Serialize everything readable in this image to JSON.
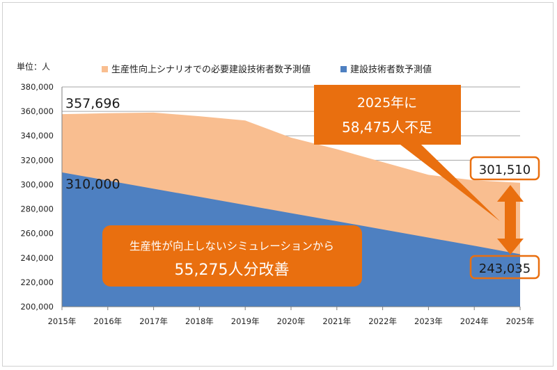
{
  "chart_data": {
    "type": "area",
    "unit_label": "単位：人",
    "categories": [
      "2015年",
      "2016年",
      "2017年",
      "2018年",
      "2019年",
      "2020年",
      "2021年",
      "2022年",
      "2023年",
      "2024年",
      "2025年"
    ],
    "series": [
      {
        "name": "生産性向上シナリオでの必要建設技術者数予測値",
        "color": "#f9be90",
        "values": [
          357696,
          358500,
          359000,
          356000,
          352500,
          338500,
          329000,
          318500,
          308000,
          303500,
          301510
        ]
      },
      {
        "name": "建設技術者数予測値",
        "color": "#4e80c1",
        "values": [
          310000,
          303300,
          296600,
          290000,
          283300,
          276600,
          270000,
          263300,
          256600,
          249900,
          243035
        ]
      }
    ],
    "ylim": [
      200000,
      380000
    ],
    "yticks": [
      "200,000",
      "220,000",
      "240,000",
      "260,000",
      "280,000",
      "300,000",
      "320,000",
      "340,000",
      "360,000",
      "380,000"
    ],
    "grid": true,
    "legend_position": "top",
    "annotations": {
      "start_upper": "357,696",
      "start_lower": "310,000",
      "end_upper": "301,510",
      "end_lower": "243,035",
      "callout_line1": "2025年に",
      "callout_line2": "58,475人不足",
      "improve_line1": "生産性が向上しないシミュレーションから",
      "improve_line2": "55,275人分改善"
    },
    "accent_color": "#e96f0f"
  }
}
